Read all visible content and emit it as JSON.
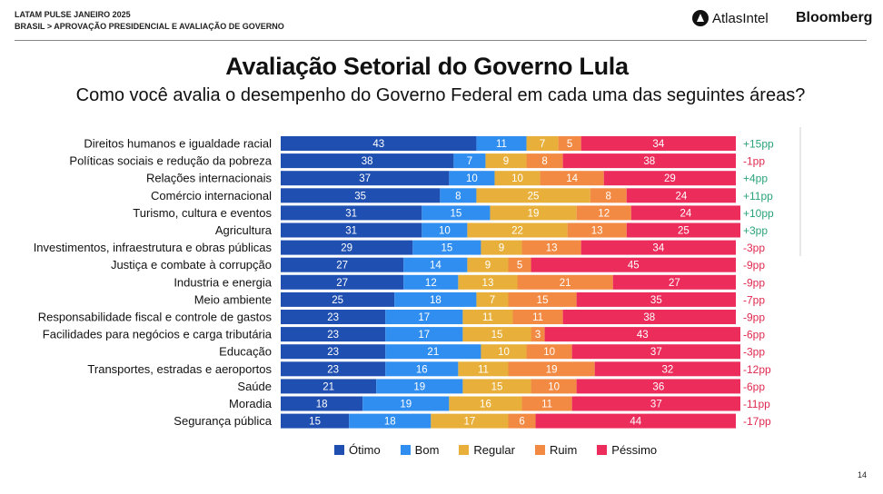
{
  "header": {
    "line1": "LATAM PULSE JANEIRO 2025",
    "line2": "BRASIL > APROVAÇÃO PRESIDENCIAL E AVALIAÇÃO DE GOVERNO"
  },
  "brands": {
    "atlas": "AtlasIntel",
    "bloomberg": "Bloomberg"
  },
  "page_number": "14",
  "colors": {
    "otimo": "#1f4fb0",
    "bom": "#2f8ef0",
    "regular": "#e8b03a",
    "ruim": "#f38a43",
    "pessimo": "#ec2d5c",
    "positive": "#2aa37a",
    "negative": "#e0294f"
  },
  "chart_data": {
    "type": "bar",
    "orientation": "horizontal",
    "stacked": true,
    "title": "Avaliação Setorial do Governo Lula",
    "subtitle": "Como você avalia o desempenho do Governo Federal em cada uma das seguintes áreas?",
    "xlim": [
      0,
      100
    ],
    "legend_position": "bottom",
    "categories": [
      "Direitos humanos e igualdade racial",
      "Políticas sociais e redução da pobreza",
      "Relações internacionais",
      "Comércio internacional",
      "Turismo, cultura e eventos",
      "Agricultura",
      "Investimentos, infraestrutura e obras públicas",
      "Justiça e combate à corrupção",
      "Industria e energia",
      "Meio ambiente",
      "Responsabilidade fiscal e controle de gastos",
      "Facilidades para negócios e carga tributária",
      "Educação",
      "Transportes, estradas e aeroportos",
      "Saúde",
      "Moradia",
      "Segurança pública"
    ],
    "series": [
      {
        "name": "Ótimo",
        "key": "otimo",
        "values": [
          43,
          38,
          37,
          35,
          31,
          31,
          29,
          27,
          27,
          25,
          23,
          23,
          23,
          23,
          21,
          18,
          15
        ]
      },
      {
        "name": "Bom",
        "key": "bom",
        "values": [
          11,
          7,
          10,
          8,
          15,
          10,
          15,
          14,
          12,
          18,
          17,
          17,
          21,
          16,
          19,
          19,
          18
        ]
      },
      {
        "name": "Regular",
        "key": "regular",
        "values": [
          7,
          9,
          10,
          25,
          19,
          22,
          9,
          9,
          13,
          7,
          11,
          15,
          10,
          11,
          15,
          16,
          17
        ]
      },
      {
        "name": "Ruim",
        "key": "ruim",
        "values": [
          5,
          8,
          14,
          8,
          12,
          13,
          13,
          5,
          21,
          15,
          11,
          3,
          10,
          19,
          10,
          11,
          6
        ]
      },
      {
        "name": "Péssimo",
        "key": "pessimo",
        "values": [
          34,
          38,
          29,
          24,
          24,
          25,
          34,
          45,
          27,
          35,
          38,
          43,
          37,
          32,
          36,
          37,
          44
        ]
      }
    ],
    "net_change": [
      "+15pp",
      "-1pp",
      "+4pp",
      "+11pp",
      "+10pp",
      "+3pp",
      "-3pp",
      "-9pp",
      "-9pp",
      "-7pp",
      "-9pp",
      "-6pp",
      "-3pp",
      "-12pp",
      "-6pp",
      "-11pp",
      "-17pp"
    ]
  }
}
